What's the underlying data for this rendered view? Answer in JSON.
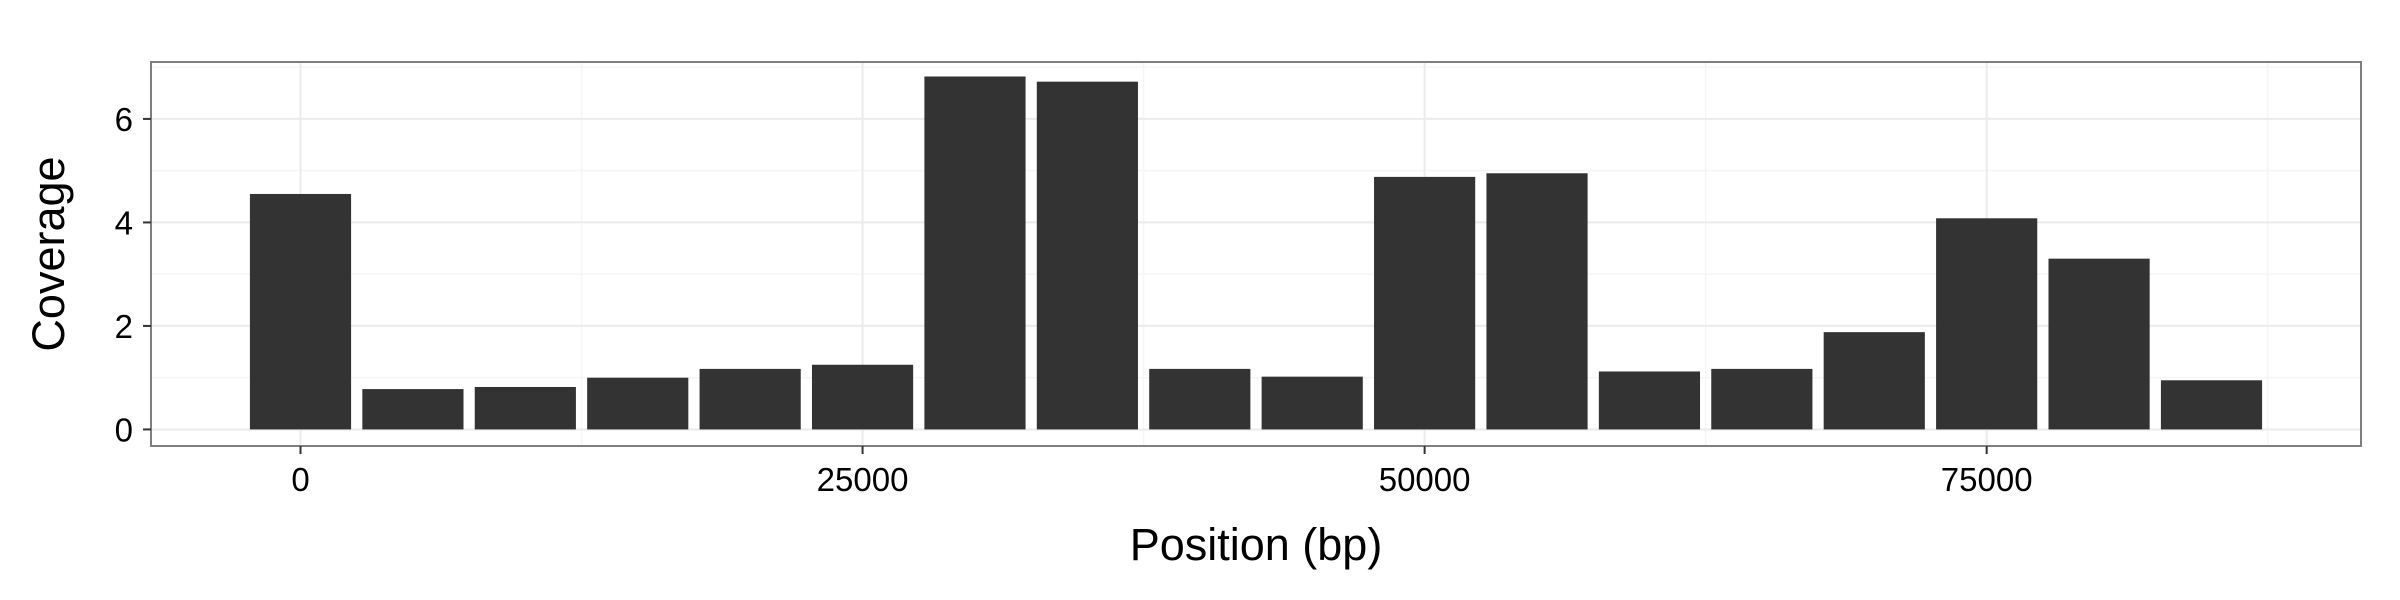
{
  "chart_data": {
    "type": "bar",
    "title": "",
    "xlabel": "Position (bp)",
    "ylabel": "Coverage",
    "x": [
      0,
      5000,
      10000,
      15000,
      20000,
      25000,
      30000,
      35000,
      40000,
      45000,
      50000,
      55000,
      60000,
      65000,
      70000,
      75000,
      80000,
      85000
    ],
    "values": [
      4.55,
      0.78,
      0.82,
      1.0,
      1.17,
      1.25,
      6.82,
      6.72,
      1.17,
      1.02,
      4.88,
      4.95,
      1.12,
      1.17,
      1.88,
      4.08,
      3.3,
      0.95
    ],
    "bin_width": 5000,
    "xlim": [
      -6650,
      91650
    ],
    "ylim": [
      -0.32,
      7.1
    ],
    "x_ticks": [
      0,
      25000,
      50000,
      75000
    ],
    "x_tick_labels": [
      "0",
      "25000",
      "50000",
      "75000"
    ],
    "y_ticks": [
      0,
      2,
      4,
      6
    ],
    "y_tick_labels": [
      "0",
      "2",
      "4",
      "6"
    ],
    "grid": true,
    "legend": "none",
    "bar_color": "#333333",
    "panel_background": "#ffffff",
    "grid_color": "#ebebeb",
    "border_color": "#7f7f7f"
  }
}
